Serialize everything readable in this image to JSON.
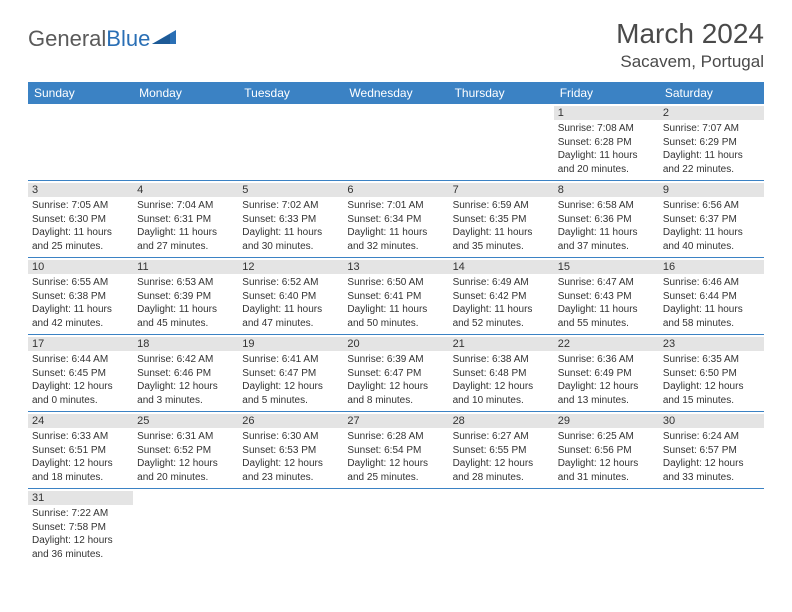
{
  "logo": {
    "general": "General",
    "blue": "Blue"
  },
  "title": "March 2024",
  "location": "Sacavem, Portugal",
  "colors": {
    "header_bg": "#3b82c4",
    "header_text": "#ffffff",
    "daynum_bg": "#e4e4e4",
    "border": "#3b82c4",
    "logo_gray": "#5a5a5a",
    "logo_blue": "#2a6fb5"
  },
  "day_headers": [
    "Sunday",
    "Monday",
    "Tuesday",
    "Wednesday",
    "Thursday",
    "Friday",
    "Saturday"
  ],
  "weeks": [
    [
      null,
      null,
      null,
      null,
      null,
      {
        "n": "1",
        "sr": "Sunrise: 7:08 AM",
        "ss": "Sunset: 6:28 PM",
        "dl": "Daylight: 11 hours and 20 minutes."
      },
      {
        "n": "2",
        "sr": "Sunrise: 7:07 AM",
        "ss": "Sunset: 6:29 PM",
        "dl": "Daylight: 11 hours and 22 minutes."
      }
    ],
    [
      {
        "n": "3",
        "sr": "Sunrise: 7:05 AM",
        "ss": "Sunset: 6:30 PM",
        "dl": "Daylight: 11 hours and 25 minutes."
      },
      {
        "n": "4",
        "sr": "Sunrise: 7:04 AM",
        "ss": "Sunset: 6:31 PM",
        "dl": "Daylight: 11 hours and 27 minutes."
      },
      {
        "n": "5",
        "sr": "Sunrise: 7:02 AM",
        "ss": "Sunset: 6:33 PM",
        "dl": "Daylight: 11 hours and 30 minutes."
      },
      {
        "n": "6",
        "sr": "Sunrise: 7:01 AM",
        "ss": "Sunset: 6:34 PM",
        "dl": "Daylight: 11 hours and 32 minutes."
      },
      {
        "n": "7",
        "sr": "Sunrise: 6:59 AM",
        "ss": "Sunset: 6:35 PM",
        "dl": "Daylight: 11 hours and 35 minutes."
      },
      {
        "n": "8",
        "sr": "Sunrise: 6:58 AM",
        "ss": "Sunset: 6:36 PM",
        "dl": "Daylight: 11 hours and 37 minutes."
      },
      {
        "n": "9",
        "sr": "Sunrise: 6:56 AM",
        "ss": "Sunset: 6:37 PM",
        "dl": "Daylight: 11 hours and 40 minutes."
      }
    ],
    [
      {
        "n": "10",
        "sr": "Sunrise: 6:55 AM",
        "ss": "Sunset: 6:38 PM",
        "dl": "Daylight: 11 hours and 42 minutes."
      },
      {
        "n": "11",
        "sr": "Sunrise: 6:53 AM",
        "ss": "Sunset: 6:39 PM",
        "dl": "Daylight: 11 hours and 45 minutes."
      },
      {
        "n": "12",
        "sr": "Sunrise: 6:52 AM",
        "ss": "Sunset: 6:40 PM",
        "dl": "Daylight: 11 hours and 47 minutes."
      },
      {
        "n": "13",
        "sr": "Sunrise: 6:50 AM",
        "ss": "Sunset: 6:41 PM",
        "dl": "Daylight: 11 hours and 50 minutes."
      },
      {
        "n": "14",
        "sr": "Sunrise: 6:49 AM",
        "ss": "Sunset: 6:42 PM",
        "dl": "Daylight: 11 hours and 52 minutes."
      },
      {
        "n": "15",
        "sr": "Sunrise: 6:47 AM",
        "ss": "Sunset: 6:43 PM",
        "dl": "Daylight: 11 hours and 55 minutes."
      },
      {
        "n": "16",
        "sr": "Sunrise: 6:46 AM",
        "ss": "Sunset: 6:44 PM",
        "dl": "Daylight: 11 hours and 58 minutes."
      }
    ],
    [
      {
        "n": "17",
        "sr": "Sunrise: 6:44 AM",
        "ss": "Sunset: 6:45 PM",
        "dl": "Daylight: 12 hours and 0 minutes."
      },
      {
        "n": "18",
        "sr": "Sunrise: 6:42 AM",
        "ss": "Sunset: 6:46 PM",
        "dl": "Daylight: 12 hours and 3 minutes."
      },
      {
        "n": "19",
        "sr": "Sunrise: 6:41 AM",
        "ss": "Sunset: 6:47 PM",
        "dl": "Daylight: 12 hours and 5 minutes."
      },
      {
        "n": "20",
        "sr": "Sunrise: 6:39 AM",
        "ss": "Sunset: 6:47 PM",
        "dl": "Daylight: 12 hours and 8 minutes."
      },
      {
        "n": "21",
        "sr": "Sunrise: 6:38 AM",
        "ss": "Sunset: 6:48 PM",
        "dl": "Daylight: 12 hours and 10 minutes."
      },
      {
        "n": "22",
        "sr": "Sunrise: 6:36 AM",
        "ss": "Sunset: 6:49 PM",
        "dl": "Daylight: 12 hours and 13 minutes."
      },
      {
        "n": "23",
        "sr": "Sunrise: 6:35 AM",
        "ss": "Sunset: 6:50 PM",
        "dl": "Daylight: 12 hours and 15 minutes."
      }
    ],
    [
      {
        "n": "24",
        "sr": "Sunrise: 6:33 AM",
        "ss": "Sunset: 6:51 PM",
        "dl": "Daylight: 12 hours and 18 minutes."
      },
      {
        "n": "25",
        "sr": "Sunrise: 6:31 AM",
        "ss": "Sunset: 6:52 PM",
        "dl": "Daylight: 12 hours and 20 minutes."
      },
      {
        "n": "26",
        "sr": "Sunrise: 6:30 AM",
        "ss": "Sunset: 6:53 PM",
        "dl": "Daylight: 12 hours and 23 minutes."
      },
      {
        "n": "27",
        "sr": "Sunrise: 6:28 AM",
        "ss": "Sunset: 6:54 PM",
        "dl": "Daylight: 12 hours and 25 minutes."
      },
      {
        "n": "28",
        "sr": "Sunrise: 6:27 AM",
        "ss": "Sunset: 6:55 PM",
        "dl": "Daylight: 12 hours and 28 minutes."
      },
      {
        "n": "29",
        "sr": "Sunrise: 6:25 AM",
        "ss": "Sunset: 6:56 PM",
        "dl": "Daylight: 12 hours and 31 minutes."
      },
      {
        "n": "30",
        "sr": "Sunrise: 6:24 AM",
        "ss": "Sunset: 6:57 PM",
        "dl": "Daylight: 12 hours and 33 minutes."
      }
    ],
    [
      {
        "n": "31",
        "sr": "Sunrise: 7:22 AM",
        "ss": "Sunset: 7:58 PM",
        "dl": "Daylight: 12 hours and 36 minutes."
      },
      null,
      null,
      null,
      null,
      null,
      null
    ]
  ]
}
